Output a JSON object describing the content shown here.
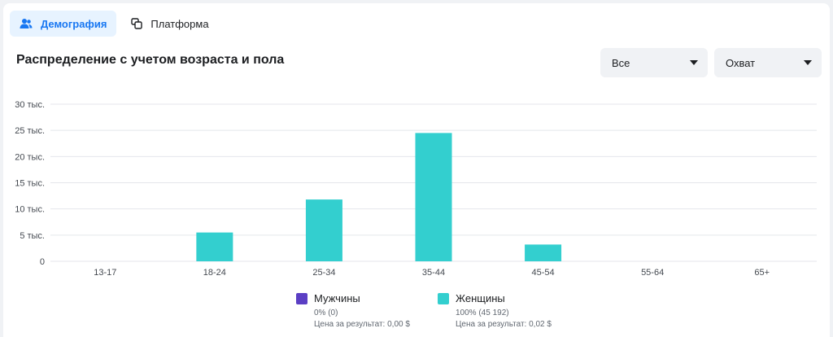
{
  "tabs": [
    {
      "label": "Демография",
      "icon": "people-icon",
      "active": true
    },
    {
      "label": "Платформа",
      "icon": "platform-icon",
      "active": false
    }
  ],
  "section": {
    "title": "Распределение с учетом возраста и пола"
  },
  "filters": {
    "gender_select": "Все",
    "metric_select": "Охват"
  },
  "colors": {
    "men": "#5b3fc4",
    "women": "#33cfcf",
    "grid": "#e4e6eb",
    "axis_text": "#444950"
  },
  "chart_data": {
    "type": "bar",
    "categories": [
      "13-17",
      "18-24",
      "25-34",
      "35-44",
      "45-54",
      "55-64",
      "65+"
    ],
    "series": [
      {
        "name": "Мужчины",
        "values": [
          0,
          0,
          0,
          0,
          0,
          0,
          0
        ]
      },
      {
        "name": "Женщины",
        "values": [
          0,
          5500,
          11800,
          24500,
          3200,
          0,
          0
        ]
      }
    ],
    "ylim": [
      0,
      30000
    ],
    "y_ticks": [
      {
        "value": 0,
        "label": "0"
      },
      {
        "value": 5000,
        "label": "5 тыс."
      },
      {
        "value": 10000,
        "label": "10 тыс."
      },
      {
        "value": 15000,
        "label": "15 тыс."
      },
      {
        "value": 20000,
        "label": "20 тыс."
      },
      {
        "value": 25000,
        "label": "25 тыс."
      },
      {
        "value": 30000,
        "label": "30 тыс."
      }
    ],
    "grid": true,
    "legend_position": "bottom-center"
  },
  "legend": [
    {
      "name": "Мужчины",
      "share": "0% (0)",
      "cost": "Цена за результат: 0,00 $"
    },
    {
      "name": "Женщины",
      "share": "100% (45 192)",
      "cost": "Цена за результат: 0,02 $"
    }
  ]
}
